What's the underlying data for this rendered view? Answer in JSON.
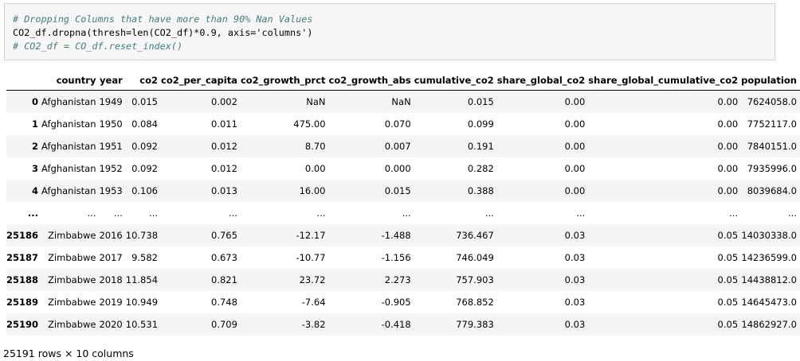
{
  "code": {
    "lines": [
      "# Dropping Columns that have more than 90% Nan Values",
      "CO2_df.dropna(thresh=len(CO2_df)*0.9, axis='columns')",
      "# CO2_df = CO_df.reset_index()"
    ]
  },
  "table": {
    "columns": [
      "country",
      "year",
      "co2",
      "co2_per_capita",
      "co2_growth_prct",
      "co2_growth_abs",
      "cumulative_co2",
      "share_global_co2",
      "share_global_cumulative_co2",
      "population"
    ],
    "rows": [
      [
        "0",
        "Afghanistan",
        "1949",
        "0.015",
        "0.002",
        "NaN",
        "NaN",
        "0.015",
        "0.00",
        "0.00",
        "7624058.0"
      ],
      [
        "1",
        "Afghanistan",
        "1950",
        "0.084",
        "0.011",
        "475.00",
        "0.070",
        "0.099",
        "0.00",
        "0.00",
        "7752117.0"
      ],
      [
        "2",
        "Afghanistan",
        "1951",
        "0.092",
        "0.012",
        "8.70",
        "0.007",
        "0.191",
        "0.00",
        "0.00",
        "7840151.0"
      ],
      [
        "3",
        "Afghanistan",
        "1952",
        "0.092",
        "0.012",
        "0.00",
        "0.000",
        "0.282",
        "0.00",
        "0.00",
        "7935996.0"
      ],
      [
        "4",
        "Afghanistan",
        "1953",
        "0.106",
        "0.013",
        "16.00",
        "0.015",
        "0.388",
        "0.00",
        "0.00",
        "8039684.0"
      ],
      [
        "...",
        "...",
        "...",
        "...",
        "...",
        "...",
        "...",
        "...",
        "...",
        "...",
        "..."
      ],
      [
        "25186",
        "Zimbabwe",
        "2016",
        "10.738",
        "0.765",
        "-12.17",
        "-1.488",
        "736.467",
        "0.03",
        "0.05",
        "14030338.0"
      ],
      [
        "25187",
        "Zimbabwe",
        "2017",
        "9.582",
        "0.673",
        "-10.77",
        "-1.156",
        "746.049",
        "0.03",
        "0.05",
        "14236599.0"
      ],
      [
        "25188",
        "Zimbabwe",
        "2018",
        "11.854",
        "0.821",
        "23.72",
        "2.273",
        "757.903",
        "0.03",
        "0.05",
        "14438812.0"
      ],
      [
        "25189",
        "Zimbabwe",
        "2019",
        "10.949",
        "0.748",
        "-7.64",
        "-0.905",
        "768.852",
        "0.03",
        "0.05",
        "14645473.0"
      ],
      [
        "25190",
        "Zimbabwe",
        "2020",
        "10.531",
        "0.709",
        "-3.82",
        "-0.418",
        "779.383",
        "0.03",
        "0.05",
        "14862927.0"
      ]
    ]
  },
  "footer": "25191 rows × 10 columns"
}
